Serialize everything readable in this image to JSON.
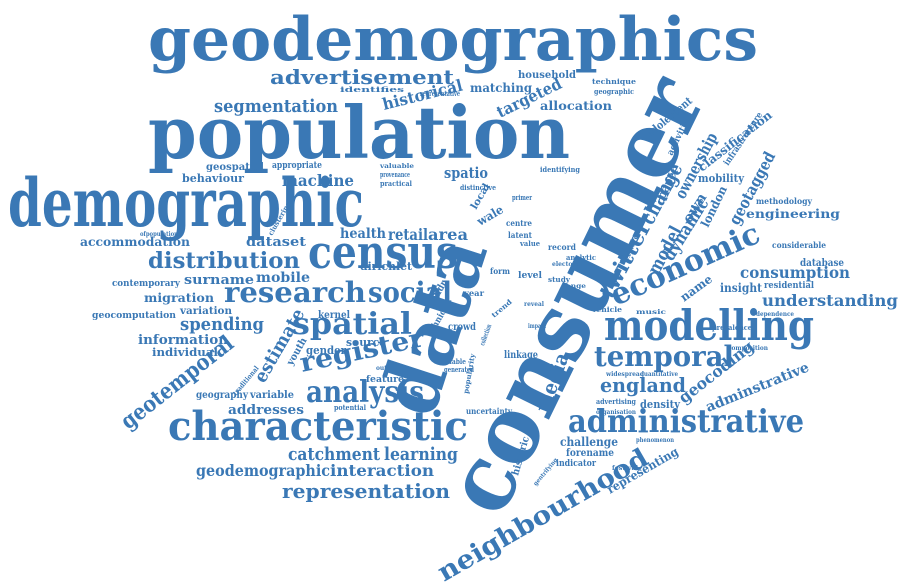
{
  "words": [
    {
      "text": "geodemographics",
      "color": "#3a78b5"
    },
    {
      "text": "population",
      "color": "#3a78b5"
    },
    {
      "text": "demographic",
      "color": "#3a78b5"
    },
    {
      "text": "consumer",
      "color": "#3a78b5"
    },
    {
      "text": "data",
      "color": "#3a78b5"
    },
    {
      "text": "census",
      "color": "#3a78b5"
    },
    {
      "text": "modelling",
      "color": "#3a78b5"
    },
    {
      "text": "characteristic",
      "color": "#3a78b5"
    },
    {
      "text": "administrative",
      "color": "#3a78b5"
    },
    {
      "text": "neighbourhood",
      "color": "#3a78b5"
    },
    {
      "text": "economic",
      "color": "#3a78b5"
    },
    {
      "text": "spatial",
      "color": "#3a78b5"
    },
    {
      "text": "research",
      "color": "#3a78b5"
    },
    {
      "text": "social",
      "color": "#3a78b5"
    },
    {
      "text": "register",
      "color": "#3a78b5"
    },
    {
      "text": "analysis",
      "color": "#3a78b5"
    },
    {
      "text": "temporal",
      "color": "#3a78b5"
    },
    {
      "text": "advertisement",
      "color": "#3a78b5"
    },
    {
      "text": "segmentation",
      "color": "#3a78b5"
    },
    {
      "text": "distribution",
      "color": "#3a78b5"
    },
    {
      "text": "representation",
      "color": "#3a78b5"
    },
    {
      "text": "geotemporal",
      "color": "#3a78b5"
    },
    {
      "text": "twitter",
      "color": "#3a78b5"
    },
    {
      "text": "change",
      "color": "#3a78b5"
    },
    {
      "text": "media",
      "color": "#3a78b5"
    },
    {
      "text": "england",
      "color": "#3a78b5"
    },
    {
      "text": "catchment",
      "color": "#3a78b5"
    },
    {
      "text": "learning",
      "color": "#3a78b5"
    },
    {
      "text": "interaction",
      "color": "#3a78b5"
    },
    {
      "text": "geodemographic",
      "color": "#3a78b5"
    },
    {
      "text": "spending",
      "color": "#3a78b5"
    },
    {
      "text": "estimate",
      "color": "#3a78b5"
    },
    {
      "text": "machine",
      "color": "#3a78b5"
    },
    {
      "text": "historical",
      "color": "#3a78b5"
    },
    {
      "text": "targeted",
      "color": "#3a78b5"
    },
    {
      "text": "allocation",
      "color": "#3a78b5"
    },
    {
      "text": "matching",
      "color": "#3a78b5"
    },
    {
      "text": "household",
      "color": "#3a78b5"
    },
    {
      "text": "consumption",
      "color": "#3a78b5"
    },
    {
      "text": "understanding",
      "color": "#3a78b5"
    },
    {
      "text": "engineering",
      "color": "#3a78b5"
    },
    {
      "text": "geocoding",
      "color": "#3a78b5"
    },
    {
      "text": "adminstrative",
      "color": "#3a78b5"
    },
    {
      "text": "ownership",
      "color": "#3a78b5"
    },
    {
      "text": "dynamic",
      "color": "#3a78b5"
    },
    {
      "text": "model",
      "color": "#3a78b5"
    },
    {
      "text": "geotagged",
      "color": "#3a78b5"
    },
    {
      "text": "classification",
      "color": "#3a78b5"
    },
    {
      "text": "mobility",
      "color": "#3a78b5"
    },
    {
      "text": "london",
      "color": "#3a78b5"
    },
    {
      "text": "paper",
      "color": "#3a78b5"
    },
    {
      "text": "accommodation",
      "color": "#3a78b5"
    },
    {
      "text": "dataset",
      "color": "#3a78b5"
    },
    {
      "text": "health",
      "color": "#3a78b5"
    },
    {
      "text": "retail",
      "color": "#3a78b5"
    },
    {
      "text": "area",
      "color": "#3a78b5"
    },
    {
      "text": "surname",
      "color": "#3a78b5"
    },
    {
      "text": "mobile",
      "color": "#3a78b5"
    },
    {
      "text": "migration",
      "color": "#3a78b5"
    },
    {
      "text": "information",
      "color": "#3a78b5"
    },
    {
      "text": "individual",
      "color": "#3a78b5"
    },
    {
      "text": "geocomputation",
      "color": "#3a78b5"
    },
    {
      "text": "variation",
      "color": "#3a78b5"
    },
    {
      "text": "contemporary",
      "color": "#3a78b5"
    },
    {
      "text": "addresses",
      "color": "#3a78b5"
    },
    {
      "text": "geography",
      "color": "#3a78b5"
    },
    {
      "text": "variable",
      "color": "#3a78b5"
    },
    {
      "text": "behaviour",
      "color": "#3a78b5"
    },
    {
      "text": "geospatial",
      "color": "#3a78b5"
    },
    {
      "text": "appropriate",
      "color": "#3a78b5"
    },
    {
      "text": "spatio",
      "color": "#3a78b5"
    },
    {
      "text": "dirichlet",
      "color": "#3a78b5"
    },
    {
      "text": "kernel",
      "color": "#3a78b5"
    },
    {
      "text": "source",
      "color": "#3a78b5"
    },
    {
      "text": "gender",
      "color": "#3a78b5"
    },
    {
      "text": "youth",
      "color": "#3a78b5"
    },
    {
      "text": "feature",
      "color": "#3a78b5"
    },
    {
      "text": "crowd",
      "color": "#3a78b5"
    },
    {
      "text": "linkage",
      "color": "#3a78b5"
    },
    {
      "text": "uncertainty",
      "color": "#3a78b5"
    },
    {
      "text": "challenge",
      "color": "#3a78b5"
    },
    {
      "text": "forename",
      "color": "#3a78b5"
    },
    {
      "text": "indicator",
      "color": "#3a78b5"
    },
    {
      "text": "historic",
      "color": "#3a78b5"
    },
    {
      "text": "representing",
      "color": "#3a78b5"
    },
    {
      "text": "density",
      "color": "#3a78b5"
    },
    {
      "text": "advertising",
      "color": "#3a78b5"
    },
    {
      "text": "insight",
      "color": "#3a78b5"
    },
    {
      "text": "residential",
      "color": "#3a78b5"
    },
    {
      "text": "name",
      "color": "#3a78b5"
    },
    {
      "text": "database",
      "color": "#3a78b5"
    },
    {
      "text": "considerable",
      "color": "#3a78b5"
    },
    {
      "text": "methodology",
      "color": "#3a78b5"
    },
    {
      "text": "adolescent",
      "color": "#3a78b5"
    },
    {
      "text": "activities",
      "color": "#3a78b5"
    },
    {
      "text": "infrastructure",
      "color": "#3a78b5"
    },
    {
      "text": "explore",
      "color": "#3a78b5"
    },
    {
      "text": "own",
      "color": "#3a78b5"
    },
    {
      "text": "wale",
      "color": "#3a78b5"
    },
    {
      "text": "local",
      "color": "#3a78b5"
    },
    {
      "text": "centre",
      "color": "#3a78b5"
    },
    {
      "text": "latent",
      "color": "#3a78b5"
    },
    {
      "text": "value",
      "color": "#3a78b5"
    },
    {
      "text": "record",
      "color": "#3a78b5"
    },
    {
      "text": "analytic",
      "color": "#3a78b5"
    },
    {
      "text": "level",
      "color": "#3a78b5"
    },
    {
      "text": "study",
      "color": "#3a78b5"
    },
    {
      "text": "form",
      "color": "#3a78b5"
    },
    {
      "text": "year",
      "color": "#3a78b5"
    },
    {
      "text": "ethnic",
      "color": "#3a78b5"
    },
    {
      "text": "addr",
      "color": "#3a78b5"
    },
    {
      "text": "popularity",
      "color": "#3a78b5"
    },
    {
      "text": "distinctive",
      "color": "#3a78b5"
    },
    {
      "text": "identifying",
      "color": "#3a78b5"
    },
    {
      "text": "technique",
      "color": "#3a78b5"
    },
    {
      "text": "geographic",
      "color": "#3a78b5"
    },
    {
      "text": "representative",
      "color": "#3a78b5"
    },
    {
      "text": "identifies",
      "color": "#3a78b5"
    },
    {
      "text": "practical",
      "color": "#3a78b5"
    },
    {
      "text": "provenance",
      "color": "#3a78b5"
    },
    {
      "text": "valuable",
      "color": "#3a78b5"
    },
    {
      "text": "available",
      "color": "#3a78b5"
    },
    {
      "text": "generated",
      "color": "#3a78b5"
    },
    {
      "text": "potential",
      "color": "#3a78b5"
    },
    {
      "text": "vehicle",
      "color": "#3a78b5"
    },
    {
      "text": "range",
      "color": "#3a78b5"
    },
    {
      "text": "reveal",
      "color": "#3a78b5"
    },
    {
      "text": "trend",
      "color": "#3a78b5"
    },
    {
      "text": "collection",
      "color": "#3a78b5"
    },
    {
      "text": "widespread",
      "color": "#3a78b5"
    },
    {
      "text": "dependence",
      "color": "#3a78b5"
    },
    {
      "text": "composition",
      "color": "#3a78b5"
    },
    {
      "text": "prevalence",
      "color": "#3a78b5"
    },
    {
      "text": "quantitative",
      "color": "#3a78b5"
    },
    {
      "text": "phenomenon",
      "color": "#3a78b5"
    },
    {
      "text": "organisation",
      "color": "#3a78b5"
    },
    {
      "text": "outdoor",
      "color": "#3a78b5"
    },
    {
      "text": "ofpopulation",
      "color": "#3a78b5"
    },
    {
      "text": "traditional",
      "color": "#3a78b5"
    },
    {
      "text": "clustering",
      "color": "#3a78b5"
    },
    {
      "text": "primer",
      "color": "#3a78b5"
    },
    {
      "text": "festival",
      "color": "#3a78b5"
    },
    {
      "text": "gentrifying",
      "color": "#3a78b5"
    },
    {
      "text": "electoral",
      "color": "#3a78b5"
    },
    {
      "text": "music",
      "color": "#3a78b5"
    },
    {
      "text": "impact",
      "color": "#3a78b5"
    }
  ]
}
